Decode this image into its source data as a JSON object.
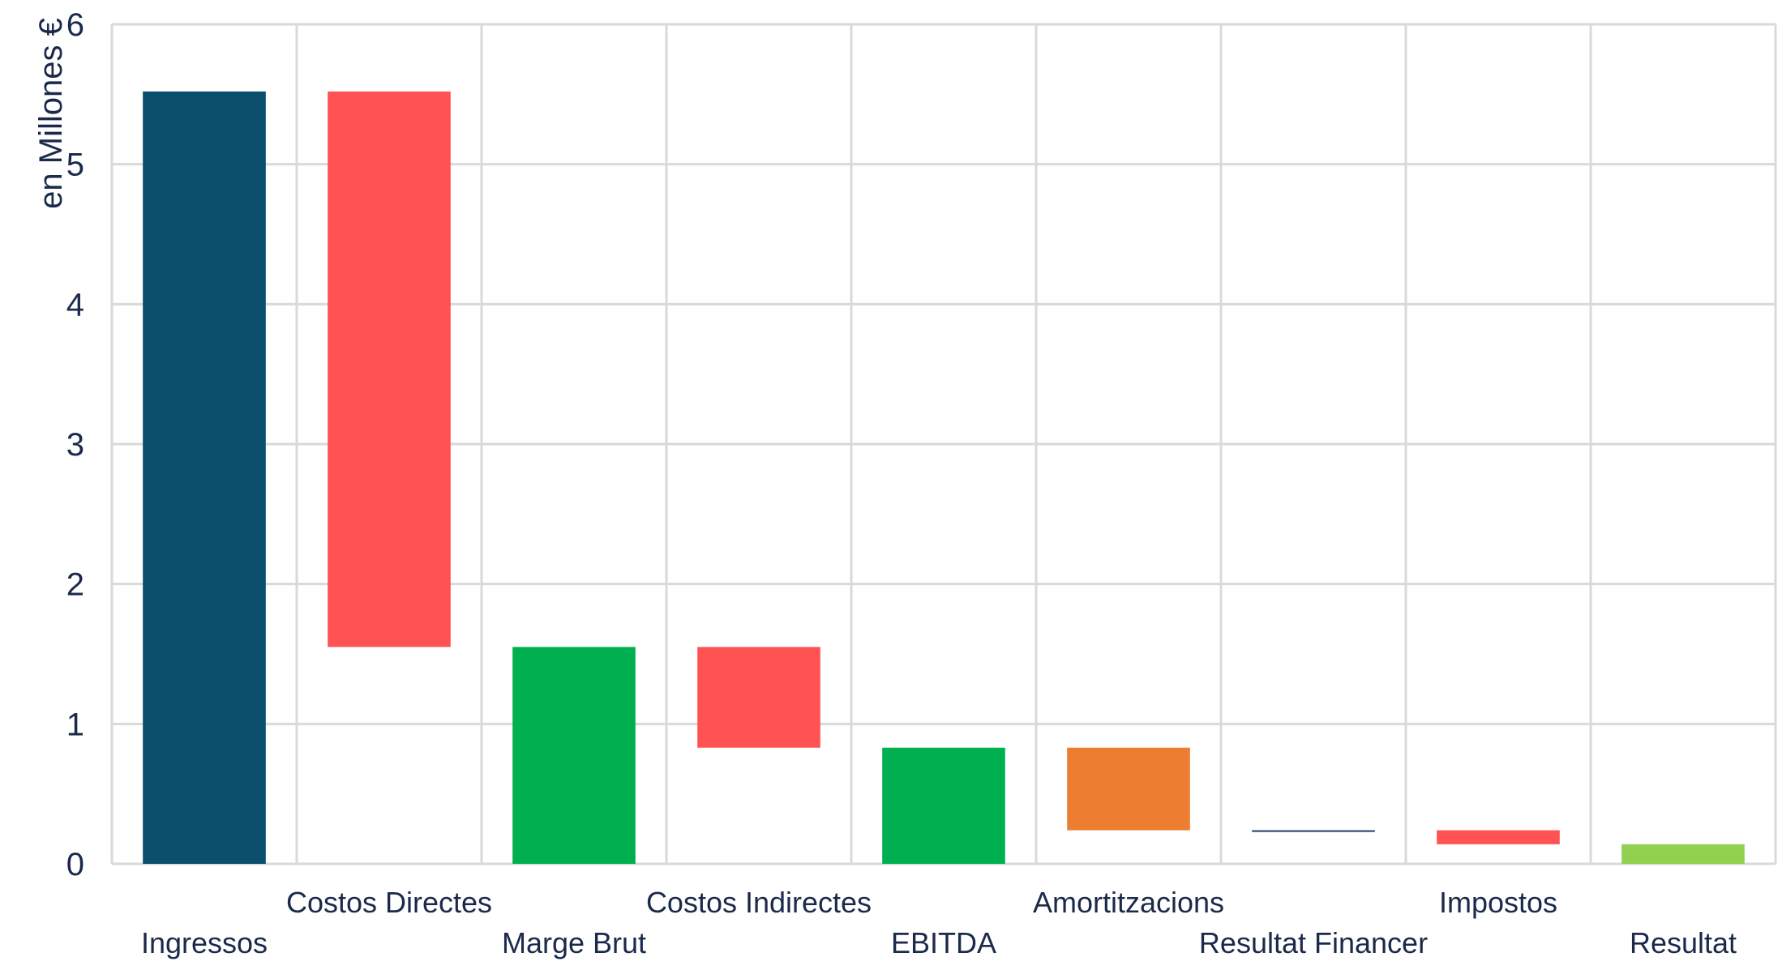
{
  "chart_data": {
    "type": "bar",
    "subtype": "waterfall",
    "title": "",
    "xlabel": "",
    "ylabel": "en Millones €",
    "ylim": [
      0,
      6
    ],
    "yticks": [
      "0",
      "1",
      "2",
      "3",
      "4",
      "5",
      "6"
    ],
    "grid": true,
    "legend": "none",
    "categories": [
      "Ingressos",
      "Costos Directes",
      "Marge Brut",
      "Costos Indirectes",
      "EBITDA",
      "Amortitzacions",
      "Resultat Financer",
      "Impostos",
      "Resultat"
    ],
    "bars": [
      {
        "label": "Ingressos",
        "start": 0,
        "end": 5.52,
        "color": "#0b4f6c"
      },
      {
        "label": "Costos Directes",
        "start": 1.55,
        "end": 5.52,
        "color": "#ff5252"
      },
      {
        "label": "Marge Brut",
        "start": 0,
        "end": 1.55,
        "color": "#00b050"
      },
      {
        "label": "Costos Indirectes",
        "start": 0.83,
        "end": 1.55,
        "color": "#ff5252"
      },
      {
        "label": "EBITDA",
        "start": 0,
        "end": 0.83,
        "color": "#00b050"
      },
      {
        "label": "Amortitzacions",
        "start": 0.24,
        "end": 0.83,
        "color": "#ed7d31"
      },
      {
        "label": "Resultat Financer",
        "start": 0.23,
        "end": 0.24,
        "color": "#1f3864"
      },
      {
        "label": "Impostos",
        "start": 0.14,
        "end": 0.24,
        "color": "#ff5252"
      },
      {
        "label": "Resultat",
        "start": 0,
        "end": 0.14,
        "color": "#92d050"
      }
    ],
    "colors": {
      "grid": "#d9d9d9",
      "text": "#1b2a4a"
    }
  }
}
